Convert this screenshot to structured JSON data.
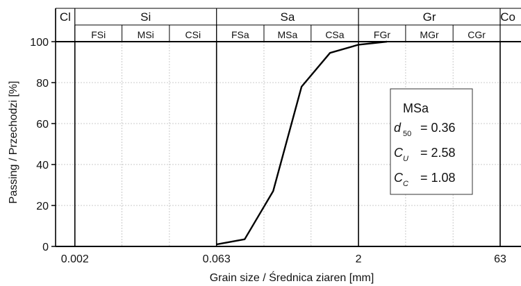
{
  "chart_data": {
    "type": "line",
    "xlabel": "Grain size / Średnica ziaren [mm]",
    "ylabel": "Passing / Przechodzi [%]",
    "x_scale": "log",
    "xlim": [
      0.00125,
      63
    ],
    "ylim": [
      0,
      100
    ],
    "yticks": [
      "0",
      "20",
      "40",
      "60",
      "80",
      "100"
    ],
    "xticks": [
      {
        "value": 0.002,
        "label": "0.002"
      },
      {
        "value": 0.063,
        "label": "0.063"
      },
      {
        "value": 2,
        "label": "2"
      },
      {
        "value": 63,
        "label": "63"
      }
    ],
    "major_classes": [
      {
        "label": "Cl",
        "from": 0.00125,
        "to": 0.002
      },
      {
        "label": "Si",
        "from": 0.002,
        "to": 0.063
      },
      {
        "label": "Sa",
        "from": 0.063,
        "to": 2
      },
      {
        "label": "Gr",
        "from": 2,
        "to": 63
      },
      {
        "label": "Co",
        "from": 63,
        "to": 80
      }
    ],
    "minor_classes": [
      {
        "label": "FSi",
        "from": 0.002,
        "to": 0.0063
      },
      {
        "label": "MSi",
        "from": 0.0063,
        "to": 0.02
      },
      {
        "label": "CSi",
        "from": 0.02,
        "to": 0.063
      },
      {
        "label": "FSa",
        "from": 0.063,
        "to": 0.2
      },
      {
        "label": "MSa",
        "from": 0.2,
        "to": 0.63
      },
      {
        "label": "CSa",
        "from": 0.63,
        "to": 2
      },
      {
        "label": "FGr",
        "from": 2,
        "to": 6.3
      },
      {
        "label": "MGr",
        "from": 6.3,
        "to": 20
      },
      {
        "label": "CGr",
        "from": 20,
        "to": 63
      }
    ],
    "series": [
      {
        "x": [
          0.063,
          0.125,
          0.25,
          0.5,
          1.0,
          2.0,
          4.0
        ],
        "y": [
          1.0,
          3.5,
          27.0,
          78.0,
          94.5,
          98.5,
          100.0
        ]
      }
    ],
    "grid": true,
    "annotation": {
      "title": "MSa",
      "rows": [
        {
          "sym": "d",
          "sub": "50",
          "value": "= 0.36"
        },
        {
          "sym": "C",
          "sub": "U",
          "value": "= 2.58"
        },
        {
          "sym": "C",
          "sub": "C",
          "value": "= 1.08"
        }
      ]
    },
    "colors": {
      "line": "#000000",
      "grid": "#bbbbbb"
    }
  }
}
